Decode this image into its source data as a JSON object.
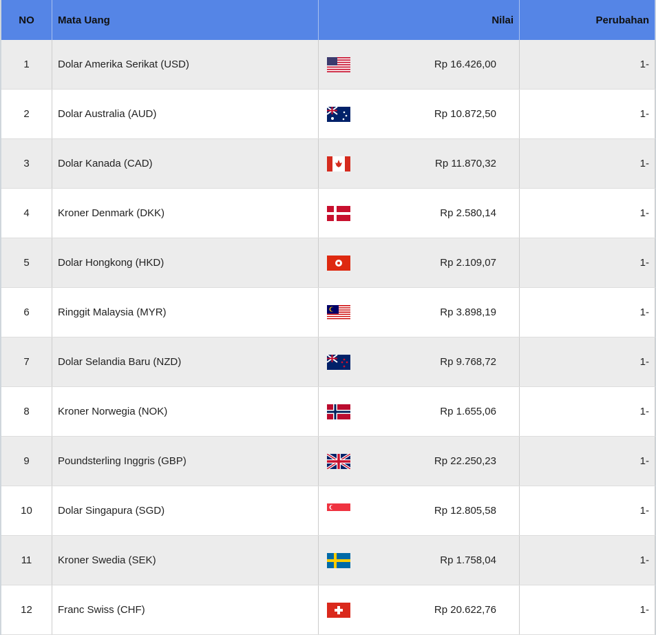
{
  "headers": {
    "no": "NO",
    "currency": "Mata Uang",
    "value": "Nilai",
    "change": "Perubahan"
  },
  "rows": [
    {
      "no": "1",
      "name": "Dolar Amerika Serikat (USD)",
      "value": "Rp 16.426,00",
      "change": "1-",
      "flag": "us"
    },
    {
      "no": "2",
      "name": "Dolar Australia (AUD)",
      "value": "Rp 10.872,50",
      "change": "1-",
      "flag": "au"
    },
    {
      "no": "3",
      "name": "Dolar Kanada (CAD)",
      "value": "Rp 11.870,32",
      "change": "1-",
      "flag": "ca"
    },
    {
      "no": "4",
      "name": "Kroner Denmark (DKK)",
      "value": "Rp 2.580,14",
      "change": "1-",
      "flag": "dk"
    },
    {
      "no": "5",
      "name": "Dolar Hongkong (HKD)",
      "value": "Rp 2.109,07",
      "change": "1-",
      "flag": "hk"
    },
    {
      "no": "6",
      "name": "Ringgit Malaysia (MYR)",
      "value": "Rp 3.898,19",
      "change": "1-",
      "flag": "my"
    },
    {
      "no": "7",
      "name": "Dolar Selandia Baru (NZD)",
      "value": "Rp 9.768,72",
      "change": "1-",
      "flag": "nz"
    },
    {
      "no": "8",
      "name": "Kroner Norwegia (NOK)",
      "value": "Rp 1.655,06",
      "change": "1-",
      "flag": "no"
    },
    {
      "no": "9",
      "name": "Poundsterling Inggris (GBP)",
      "value": "Rp 22.250,23",
      "change": "1-",
      "flag": "gb"
    },
    {
      "no": "10",
      "name": "Dolar Singapura (SGD)",
      "value": "Rp 12.805,58",
      "change": "1-",
      "flag": "sg"
    },
    {
      "no": "11",
      "name": "Kroner Swedia (SEK)",
      "value": "Rp 1.758,04",
      "change": "1-",
      "flag": "se"
    },
    {
      "no": "12",
      "name": "Franc Swiss (CHF)",
      "value": "Rp 20.622,76",
      "change": "1-",
      "flag": "ch"
    }
  ],
  "colors": {
    "header": "#5585e6",
    "row_alt": "#ececec"
  }
}
